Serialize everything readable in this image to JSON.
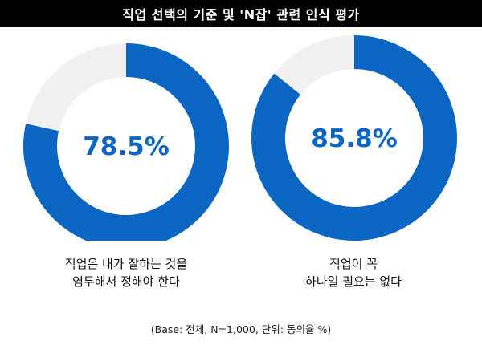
{
  "title": "직업 선택의 기준 및 'N잡' 관련 인식 평가",
  "colors": {
    "filled": "#0a66c2",
    "track": "#f0f0f0",
    "value_text": "#0a66c2"
  },
  "chart_data": [
    {
      "type": "pie",
      "subtype": "donut",
      "value": 78.5,
      "remainder": 21.5,
      "value_label": "78.5%",
      "caption": [
        "직업은 내가 잘하는 것을",
        "염두해서 정해야 한다"
      ]
    },
    {
      "type": "pie",
      "subtype": "donut",
      "value": 85.8,
      "remainder": 14.2,
      "value_label": "85.8%",
      "caption": [
        "직업이 꼭",
        "하나일 필요는 없다"
      ]
    }
  ],
  "footnote": "(Base: 전체, N=1,000, 단위: 동의율 %)"
}
